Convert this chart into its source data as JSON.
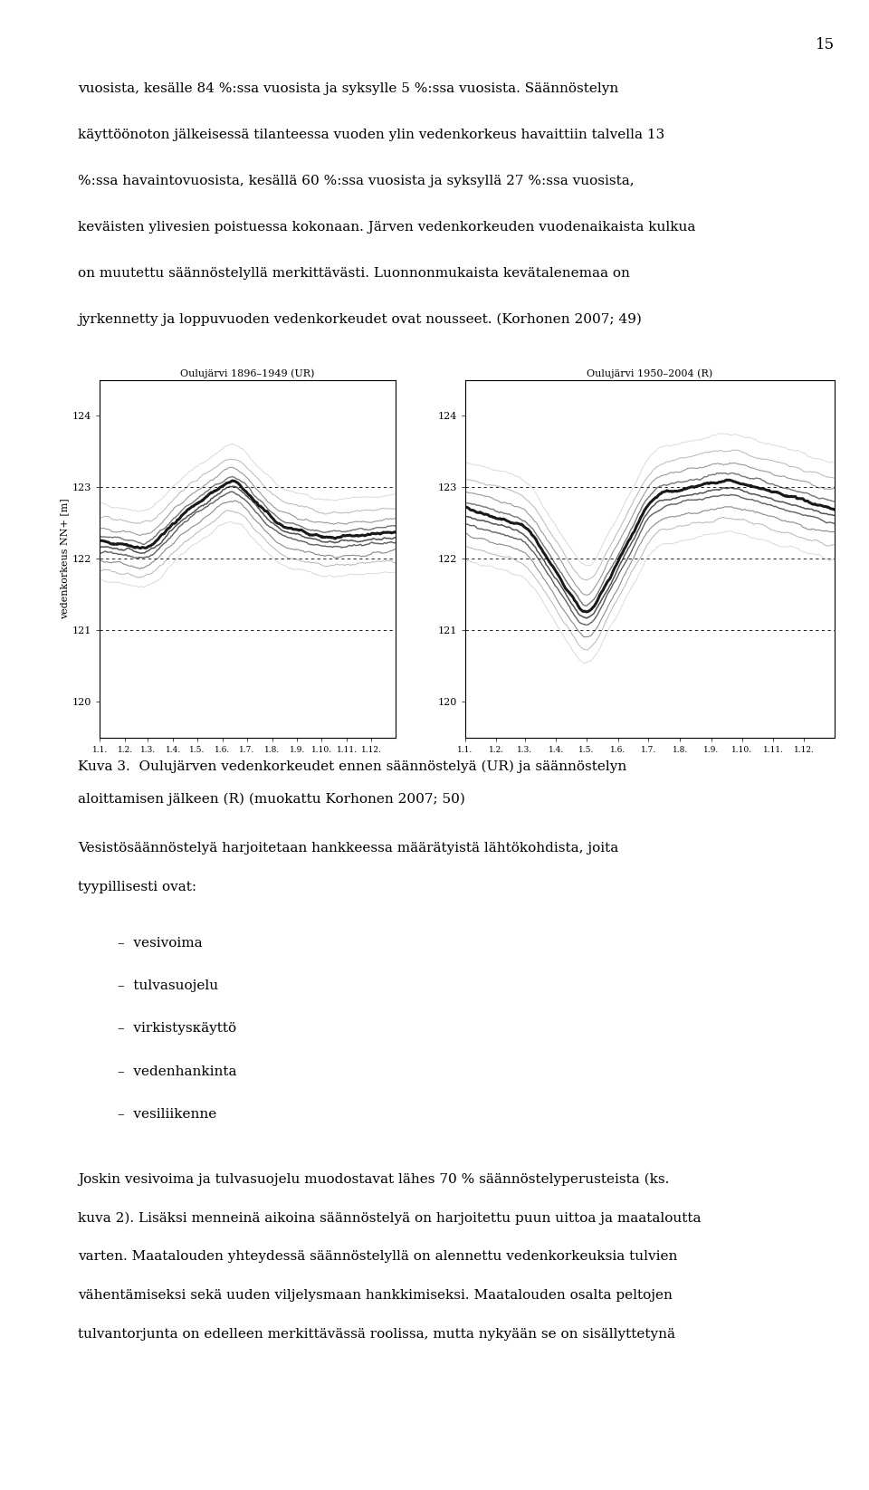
{
  "page_number": "15",
  "top_text_line1": "vuosista, kesälle 84 %:ssa vuosista ja syksylle 5 %:ssa vuosista. Säännöstelyn",
  "top_text_line2": "käyttöönoton jälkeisessä tilanteessa vuoden ylin vedenkorkeus havaittiin talvella 13",
  "top_text_line3": "%:ssa havaintovuosista, kesällä 60 %:ssa vuosista ja syksyllä 27 %:ssa vuosista,",
  "top_text_line4": "keväisten ylivesien poistuessa kokonaan. Järven vedenkorkeuden vuodenaikaista kulkua",
  "top_text_line5": "on muutettu säännöstelyllä merkittävästi. Luonnonmukaista kevätalenemaa on",
  "top_text_line6": "jyrkennetty ja loppuvuoden vedenkorkeudet ovat nousseet. (Korhonen 2007; 49)",
  "chart_left_title": "Oulujärvi 1896–1949 (UR)",
  "chart_right_title": "Oulujärvi 1950–2004 (R)",
  "ylabel": "vedenkorkeus NN+ [m]",
  "x_tick_labels": [
    "1.1.",
    "1.2.",
    "1.3.",
    "1.4.",
    "1.5.",
    "1.6.",
    "1.7.",
    "1.8.",
    "1.9.",
    "1.10.",
    "1.11.",
    "1.12."
  ],
  "yticks": [
    120,
    121,
    122,
    123,
    124
  ],
  "ylim": [
    119.5,
    124.5
  ],
  "dashed_lines": [
    121,
    122,
    123
  ],
  "caption_line1": "Kuva 3.  Oulujärven vedenkorkeudet ennen säännöstelyä (UR) ja säännöstelyn",
  "caption_line2": "aloittamisen jälkeen (R) (muokattu Korhonen 2007; 50)",
  "bottom_para1_line1": "Vesistösäännöstelyä harjoitetaan hankkeessa määrätyistä lähtökohdista, joita",
  "bottom_para1_line2": "tyypillisesti ovat:",
  "bullet_items": [
    "vesivoima",
    "tulvasuojelu",
    "virkistysкäyttö",
    "vedenhankinta",
    "vesiliikenne"
  ],
  "bottom_para2_line1": "Joskin vesivoima ja tulvasuojelu muodostavat lähes 70 % säännöstelyperusteista (ks.",
  "bottom_para2_line2": "kuva 2). Lisäksi menneinä aikoina säännöstelyä on harjoitettu puun uittoa ja maataloutta",
  "bottom_para2_line3": "varten. Maatalouden yhteydessä säännöstelyllä on alennettu vedenkorkeuksia tulvien",
  "bottom_para2_line4": "vähentämiseksi sekä uuden viljelysmaan hankkimiseksi. Maatalouden osalta peltojen",
  "bottom_para2_line5": "tulvantorjunta on edelleen merkittävässä roolissa, mutta nykyään se on sisällyttetynä",
  "background_color": "#ffffff",
  "text_color": "#000000",
  "font_size_body": 11,
  "font_size_caption": 11,
  "font_size_chart_title": 8,
  "font_size_axis": 8,
  "font_size_page_num": 12
}
